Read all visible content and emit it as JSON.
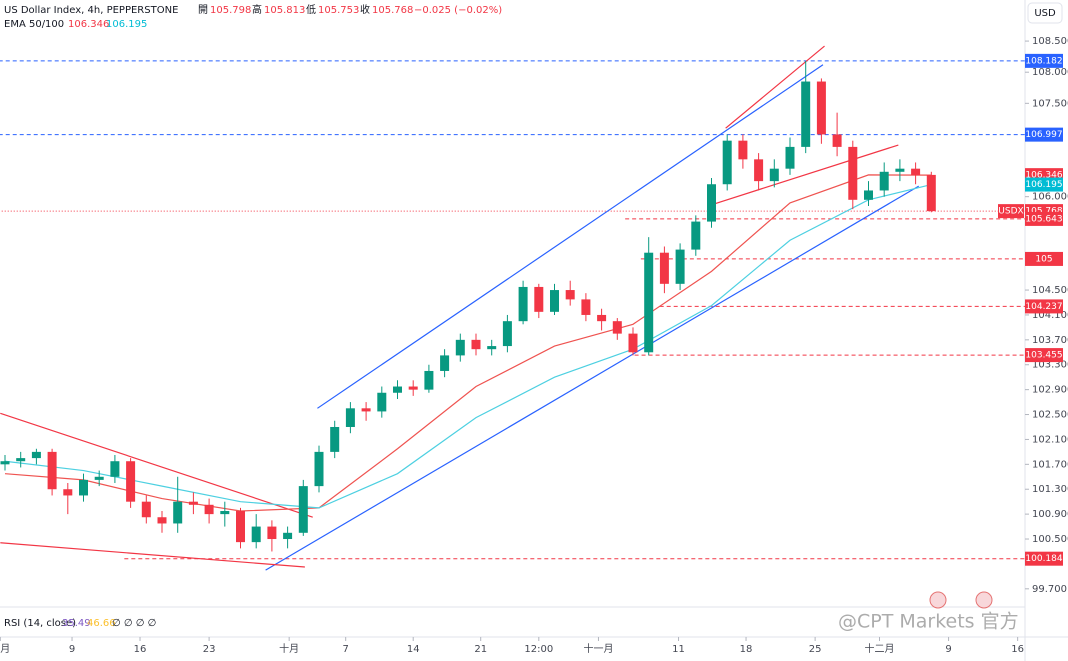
{
  "header": {
    "symbol": "US Dollar Index, 4h, PEPPERSTONE",
    "open_label": "開",
    "open": 105.798,
    "high_label": "高",
    "high": 105.813,
    "low_label": "低",
    "low": 105.753,
    "close_label": "收",
    "close": 105.768,
    "change": "−0.025 (−0.02%)"
  },
  "ema_legend": {
    "label": "EMA 50/100",
    "values": [
      106.346,
      106.195
    ]
  },
  "rsi_legend": {
    "label": "RSI (14, close)",
    "values": [
      35.49,
      46.66
    ],
    "extra": "∅ ∅ ∅ ∅"
  },
  "currency_button": "USD",
  "watermark": "@CPT Markets 官方",
  "chart_data": {
    "type": "candlestick",
    "up_color": "#089981",
    "down_color": "#f23645",
    "open": [
      101.7,
      101.75,
      101.8,
      101.9,
      101.3,
      101.2,
      101.45,
      101.5,
      101.75,
      101.1,
      100.85,
      100.75,
      101.1,
      101.05,
      100.9,
      100.95,
      100.45,
      100.7,
      100.5,
      100.6,
      101.35,
      101.9,
      102.3,
      102.6,
      102.55,
      102.85,
      102.95,
      102.9,
      103.2,
      103.45,
      103.7,
      103.55,
      103.6,
      104.0,
      104.55,
      104.15,
      104.5,
      104.35,
      104.1,
      104.0,
      103.8,
      103.5,
      105.1,
      104.6,
      105.15,
      105.6,
      106.2,
      106.9,
      106.6,
      106.25,
      106.45,
      106.8,
      107.85,
      107.0,
      106.8,
      105.95,
      106.1,
      106.4,
      106.45,
      106.35
    ],
    "high": [
      101.85,
      101.9,
      101.95,
      101.95,
      101.4,
      101.55,
      101.6,
      101.85,
      101.8,
      101.2,
      100.95,
      101.5,
      101.25,
      101.15,
      101.1,
      101.0,
      100.9,
      100.8,
      100.7,
      101.45,
      102.0,
      102.4,
      102.7,
      102.7,
      102.95,
      103.05,
      103.05,
      103.3,
      103.55,
      103.8,
      103.8,
      103.7,
      104.1,
      104.65,
      104.6,
      104.6,
      104.65,
      104.45,
      104.2,
      104.05,
      103.9,
      105.35,
      105.2,
      105.25,
      105.7,
      106.3,
      107.0,
      107.0,
      106.7,
      106.6,
      106.95,
      108.18,
      107.9,
      107.35,
      106.9,
      106.25,
      106.55,
      106.6,
      106.55,
      106.4
    ],
    "low": [
      101.6,
      101.65,
      101.7,
      101.2,
      100.9,
      101.1,
      101.35,
      101.4,
      101.0,
      100.75,
      100.6,
      100.6,
      100.9,
      100.75,
      100.7,
      100.35,
      100.35,
      100.3,
      100.35,
      100.55,
      101.25,
      101.8,
      102.2,
      102.4,
      102.45,
      102.75,
      102.8,
      102.85,
      103.1,
      103.35,
      103.45,
      103.45,
      103.5,
      103.95,
      104.05,
      104.1,
      104.25,
      104.0,
      103.85,
      103.7,
      103.45,
      103.45,
      104.45,
      104.5,
      105.05,
      105.5,
      106.1,
      106.45,
      106.1,
      106.15,
      106.35,
      106.7,
      106.85,
      106.65,
      105.8,
      105.85,
      106.0,
      106.25,
      106.2,
      105.75
    ],
    "close": [
      101.75,
      101.8,
      101.9,
      101.3,
      101.2,
      101.45,
      101.5,
      101.75,
      101.1,
      100.85,
      100.75,
      101.1,
      101.05,
      100.9,
      100.95,
      100.45,
      100.7,
      100.5,
      100.6,
      101.35,
      101.9,
      102.3,
      102.6,
      102.55,
      102.85,
      102.95,
      102.9,
      103.2,
      103.45,
      103.7,
      103.55,
      103.6,
      104.0,
      104.55,
      104.15,
      104.5,
      104.35,
      104.1,
      104.0,
      103.8,
      103.5,
      105.1,
      104.6,
      105.15,
      105.6,
      106.2,
      106.9,
      106.6,
      106.25,
      106.45,
      106.8,
      107.85,
      107.0,
      106.8,
      105.95,
      106.1,
      106.4,
      106.45,
      106.35,
      105.768
    ],
    "series": [
      {
        "name": "EMA 50",
        "color": "#ef5350",
        "x": [
          0,
          5,
          10,
          15,
          20,
          25,
          30,
          35,
          40,
          45,
          50,
          55,
          59
        ],
        "values": [
          101.55,
          101.45,
          101.15,
          100.95,
          101.0,
          101.95,
          102.95,
          103.6,
          103.95,
          104.8,
          105.9,
          106.35,
          106.346
        ]
      },
      {
        "name": "EMA 100",
        "color": "#4dd0e1",
        "x": [
          0,
          5,
          10,
          15,
          20,
          25,
          30,
          35,
          40,
          45,
          50,
          55,
          59
        ],
        "values": [
          101.75,
          101.6,
          101.35,
          101.1,
          101.0,
          101.55,
          102.45,
          103.1,
          103.55,
          104.25,
          105.3,
          105.95,
          106.195
        ]
      }
    ],
    "trendlines": [
      {
        "color": "#2962ff",
        "x": [
          19.9,
          52.1
        ],
        "values": [
          102.6,
          108.12
        ]
      },
      {
        "color": "#2962ff",
        "x": [
          16.6,
          58.2
        ],
        "values": [
          100.0,
          106.17
        ]
      },
      {
        "color": "#f23645",
        "x": [
          45.9,
          52.2
        ],
        "values": [
          107.1,
          108.42
        ]
      },
      {
        "color": "#f23645",
        "x": [
          45.0,
          56.9
        ],
        "values": [
          105.87,
          106.83
        ]
      },
      {
        "color": "#f23645",
        "x": [
          -0.3,
          19.6
        ],
        "values": [
          102.52,
          100.85
        ]
      },
      {
        "color": "#f23645",
        "x": [
          -0.3,
          19.1
        ],
        "values": [
          100.44,
          100.05
        ]
      }
    ],
    "levels": [
      {
        "value": 108.182,
        "color": "#2962ff",
        "from": -0.4
      },
      {
        "value": 106.997,
        "color": "#2962ff",
        "from": -0.4
      },
      {
        "value": 106.346,
        "color": "#f23645"
      },
      {
        "value": 106.195,
        "color": "#00bcd4"
      },
      {
        "value": 105.768,
        "color": "#f23645",
        "from": -0.4,
        "tag": "USDX"
      },
      {
        "value": 105.643,
        "color": "#f23645",
        "from": 39.5
      },
      {
        "value": 105.0,
        "color": "#f23645",
        "from": 40.5
      },
      {
        "value": 104.237,
        "color": "#f23645",
        "from": 41.7
      },
      {
        "value": 103.455,
        "color": "#f23645",
        "from": 40.1
      },
      {
        "value": 100.184,
        "color": "#f23645",
        "from": 7.6
      }
    ],
    "ylim": [
      99.44,
      109.16
    ],
    "yticks": [
      {
        "value": 108.5,
        "label": "108.500"
      },
      {
        "value": 108,
        "label": "108.000"
      },
      {
        "value": 107.5,
        "label": "107.500"
      },
      {
        "value": 106,
        "label": "106.000"
      },
      {
        "value": 104.5,
        "label": "104.500"
      },
      {
        "value": 104.1,
        "label": "104.100"
      },
      {
        "value": 103.7,
        "label": "103.700"
      },
      {
        "value": 103.3,
        "label": "103.300"
      },
      {
        "value": 102.9,
        "label": "102.900"
      },
      {
        "value": 102.5,
        "label": "102.500"
      },
      {
        "value": 102.1,
        "label": "102.100"
      },
      {
        "value": 101.7,
        "label": "101.700"
      },
      {
        "value": 101.3,
        "label": "101.300"
      },
      {
        "value": 100.9,
        "label": "100.900"
      },
      {
        "value": 100.5,
        "label": "100.500"
      },
      {
        "value": 99.7,
        "label": "99.700"
      }
    ],
    "xticks": [
      {
        "value": -0.3,
        "label": "九月"
      },
      {
        "value": 4.27,
        "label": "9"
      },
      {
        "value": 8.6,
        "label": "16"
      },
      {
        "value": 13.0,
        "label": "23"
      },
      {
        "value": 18.1,
        "label": "十月"
      },
      {
        "value": 21.7,
        "label": "7"
      },
      {
        "value": 26.0,
        "label": "14"
      },
      {
        "value": 30.3,
        "label": "21"
      },
      {
        "value": 34.0,
        "label": "12:00"
      },
      {
        "value": 37.8,
        "label": "十一月"
      },
      {
        "value": 42.9,
        "label": "11"
      },
      {
        "value": 47.2,
        "label": "18"
      },
      {
        "value": 51.6,
        "label": "25"
      },
      {
        "value": 55.7,
        "label": "十二月"
      },
      {
        "value": 60.1,
        "label": "9"
      },
      {
        "value": 64.5,
        "label": "16"
      }
    ]
  }
}
